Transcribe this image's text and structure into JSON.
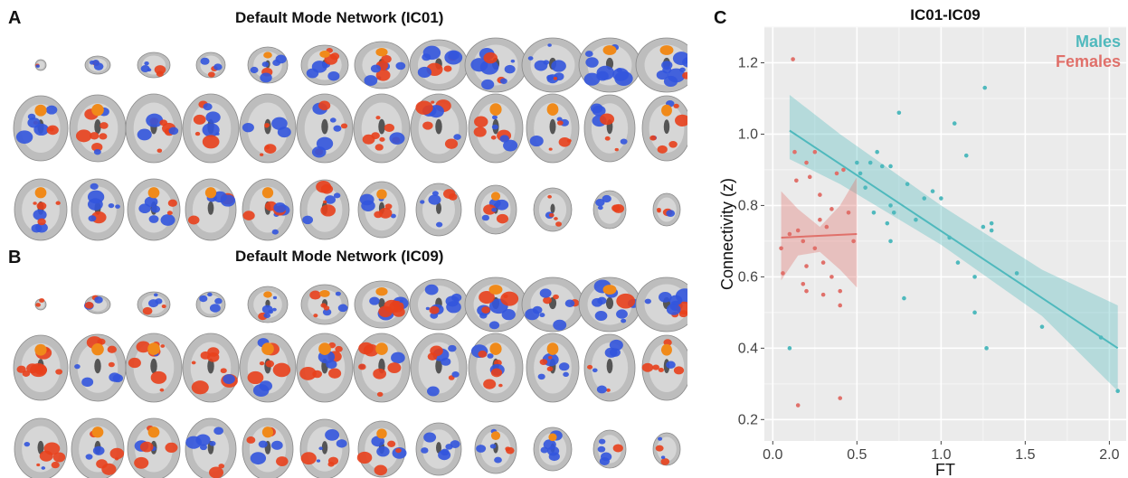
{
  "panels": {
    "a": {
      "letter": "A",
      "title": "Default Mode Network (IC01)"
    },
    "b": {
      "letter": "B",
      "title": "Default Mode Network (IC09)"
    },
    "c": {
      "letter": "C"
    }
  },
  "colors": {
    "males": "#4fb9bd",
    "females": "#e0706a",
    "positive_map": "#e8401c",
    "negative_map": "#3355dd",
    "brain": "#bdbdbd",
    "plot_bg": "#ebebeb"
  },
  "chart_data": {
    "type": "scatter",
    "title": "IC01-IC09",
    "xlabel": "FT",
    "ylabel": "Connectivity (z)",
    "xlim": [
      -0.05,
      2.1
    ],
    "ylim": [
      0.14,
      1.3
    ],
    "xticks": [
      "0.0",
      "0.5",
      "1.0",
      "1.5",
      "2.0"
    ],
    "xtick_values": [
      0.0,
      0.5,
      1.0,
      1.5,
      2.0
    ],
    "yticks": [
      "0.2",
      "0.4",
      "0.6",
      "0.8",
      "1.0",
      "1.2"
    ],
    "ytick_values": [
      0.2,
      0.4,
      0.6,
      0.8,
      1.0,
      1.2
    ],
    "grid": true,
    "legend_position": "top-right",
    "series": [
      {
        "name": "Males",
        "color": "#4fb9bd",
        "points": [
          [
            0.1,
            0.4
          ],
          [
            0.5,
            0.92
          ],
          [
            0.52,
            0.89
          ],
          [
            0.55,
            0.85
          ],
          [
            0.58,
            0.92
          ],
          [
            0.6,
            0.78
          ],
          [
            0.62,
            0.95
          ],
          [
            0.65,
            0.91
          ],
          [
            0.68,
            0.75
          ],
          [
            0.7,
            0.91
          ],
          [
            0.7,
            0.8
          ],
          [
            0.7,
            0.7
          ],
          [
            0.72,
            0.78
          ],
          [
            0.75,
            1.06
          ],
          [
            0.78,
            0.54
          ],
          [
            0.8,
            0.86
          ],
          [
            0.85,
            0.76
          ],
          [
            0.9,
            0.82
          ],
          [
            0.95,
            0.84
          ],
          [
            1.0,
            0.82
          ],
          [
            1.05,
            0.71
          ],
          [
            1.08,
            1.03
          ],
          [
            1.1,
            0.64
          ],
          [
            1.15,
            0.94
          ],
          [
            1.2,
            0.6
          ],
          [
            1.2,
            0.5
          ],
          [
            1.25,
            0.74
          ],
          [
            1.26,
            1.13
          ],
          [
            1.27,
            0.4
          ],
          [
            1.3,
            0.75
          ],
          [
            1.3,
            0.73
          ],
          [
            1.45,
            0.61
          ],
          [
            1.6,
            0.46
          ],
          [
            1.95,
            0.43
          ],
          [
            2.05,
            0.28
          ]
        ],
        "fit": {
          "x": [
            0.1,
            2.05
          ],
          "y": [
            1.01,
            0.4
          ]
        },
        "ci": {
          "x": [
            0.1,
            0.4,
            1.0,
            1.6,
            2.05
          ],
          "lower": [
            0.93,
            0.86,
            0.69,
            0.49,
            0.28
          ],
          "upper": [
            1.11,
            1.0,
            0.8,
            0.62,
            0.52
          ]
        }
      },
      {
        "name": "Females",
        "color": "#e0706a",
        "points": [
          [
            0.05,
            0.68
          ],
          [
            0.06,
            0.61
          ],
          [
            0.1,
            0.72
          ],
          [
            0.12,
            1.21
          ],
          [
            0.13,
            0.95
          ],
          [
            0.14,
            0.87
          ],
          [
            0.15,
            0.73
          ],
          [
            0.15,
            0.24
          ],
          [
            0.18,
            0.58
          ],
          [
            0.18,
            0.7
          ],
          [
            0.2,
            0.92
          ],
          [
            0.2,
            0.63
          ],
          [
            0.2,
            0.56
          ],
          [
            0.22,
            0.88
          ],
          [
            0.25,
            0.95
          ],
          [
            0.25,
            0.68
          ],
          [
            0.28,
            0.83
          ],
          [
            0.28,
            0.76
          ],
          [
            0.3,
            0.64
          ],
          [
            0.3,
            0.55
          ],
          [
            0.32,
            0.74
          ],
          [
            0.35,
            0.6
          ],
          [
            0.35,
            0.79
          ],
          [
            0.38,
            0.89
          ],
          [
            0.4,
            0.56
          ],
          [
            0.4,
            0.52
          ],
          [
            0.4,
            0.26
          ],
          [
            0.42,
            0.9
          ],
          [
            0.45,
            0.78
          ],
          [
            0.48,
            0.7
          ]
        ],
        "fit": {
          "x": [
            0.05,
            0.5
          ],
          "y": [
            0.71,
            0.72
          ]
        },
        "ci": {
          "x": [
            0.05,
            0.15,
            0.28,
            0.4,
            0.5
          ],
          "lower": [
            0.59,
            0.66,
            0.67,
            0.62,
            0.57
          ],
          "upper": [
            0.84,
            0.79,
            0.74,
            0.8,
            0.88
          ]
        }
      }
    ]
  }
}
